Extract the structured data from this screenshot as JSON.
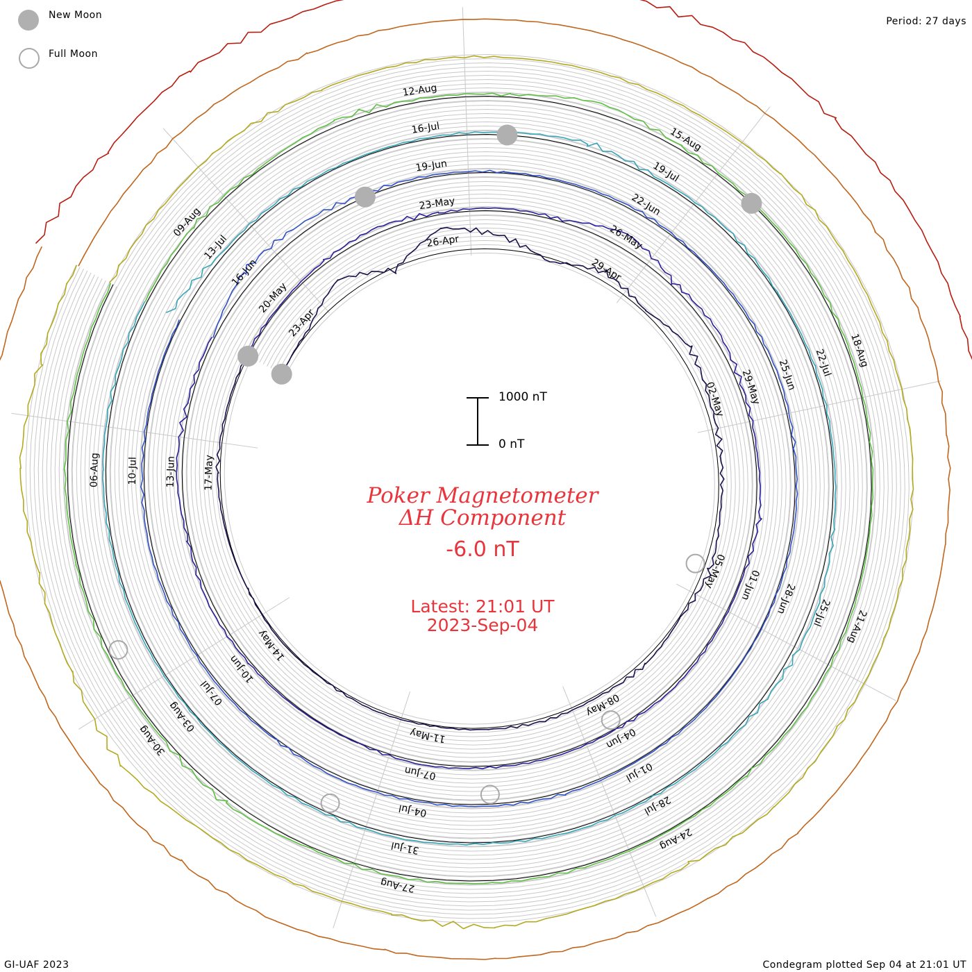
{
  "legend": {
    "new_moon_label": "New Moon",
    "full_moon_label": "Full Moon"
  },
  "period_label": "Period: 27 days",
  "credit": "GI-UAF 2023",
  "plotted": "Condegram plotted Sep 04 at 21:01 UT",
  "title_line1": "Poker Magnetometer",
  "title_line2": "ΔH Component",
  "current_value": "-6.0 nT",
  "latest_line1": "Latest: 21:01 UT",
  "latest_line2": "2023-Sep-04",
  "scale": {
    "top_label": "1000 nT",
    "bottom_label": "0 nT",
    "top_value": 1000,
    "bottom_value": 0
  },
  "colors": {
    "new_moon": "#b0b0b0",
    "full_moon": "#a8a8a8",
    "title": "#e8343a",
    "grid": "#c8c8c8",
    "ring": "#000000"
  },
  "chart_data": {
    "type": "line",
    "layout": "spiral condegram",
    "period_days": 27,
    "start_date": "2023-04-22",
    "end_date": "2023-09-04",
    "date_labels": [
      "23-Apr",
      "26-Apr",
      "29-Apr",
      "02-May",
      "05-May",
      "08-May",
      "11-May",
      "14-May",
      "17-May",
      "20-May",
      "23-May",
      "26-May",
      "29-May",
      "01-Jun",
      "04-Jun",
      "07-Jun",
      "10-Jun",
      "13-Jun",
      "16-Jun",
      "19-Jun",
      "22-Jun",
      "25-Jun",
      "28-Jun",
      "01-Jul",
      "04-Jul",
      "07-Jul",
      "10-Jul",
      "13-Jul",
      "16-Jul",
      "19-Jul",
      "22-Jul",
      "25-Jul",
      "28-Jul",
      "31-Jul",
      "03-Aug",
      "06-Aug",
      "09-Aug",
      "12-Aug",
      "15-Aug",
      "18-Aug",
      "21-Aug",
      "24-Aug",
      "27-Aug",
      "30-Aug"
    ],
    "new_moon_dates": [
      "2023-04-20",
      "2023-05-19",
      "2023-06-18",
      "2023-07-17",
      "2023-08-16"
    ],
    "full_moon_dates": [
      "2023-05-05",
      "2023-06-04",
      "2023-07-03",
      "2023-08-01",
      "2023-08-31"
    ],
    "series_colors": [
      "#1a0f4a",
      "#2a1f9a",
      "#3150c8",
      "#35a6b8",
      "#5fbf45",
      "#b4a91e",
      "#c0651c",
      "#b81c10"
    ],
    "delta_h_nT": [
      [
        -20,
        40,
        380,
        -60,
        520,
        300,
        -80,
        180,
        40,
        260,
        120,
        80,
        60,
        140,
        20,
        90,
        40,
        60,
        30,
        20,
        50,
        10,
        30,
        0,
        20,
        60,
        30
      ],
      [
        40,
        20,
        60,
        120,
        30,
        60,
        40,
        320,
        80,
        140,
        60,
        40,
        90,
        20,
        30,
        60,
        20,
        40,
        30,
        60,
        10,
        20,
        40,
        80,
        30,
        120,
        60
      ],
      [
        30,
        260,
        180,
        60,
        40,
        20,
        30,
        50,
        20,
        40,
        60,
        30,
        40,
        20,
        10,
        30,
        20,
        50,
        40,
        30,
        60,
        20,
        40,
        30,
        60,
        40,
        20
      ],
      [
        280,
        60,
        40,
        20,
        30,
        50,
        140,
        40,
        60,
        20,
        40,
        30,
        60,
        120,
        80,
        40,
        30,
        50,
        20,
        60,
        40,
        30,
        20,
        40,
        30,
        60,
        50
      ],
      [
        40,
        80,
        30,
        120,
        60,
        40,
        220,
        60,
        30,
        50,
        40,
        30,
        20,
        40,
        60,
        30,
        20,
        40,
        50,
        60,
        30,
        120,
        40,
        60,
        30,
        50,
        40
      ],
      [
        60,
        40,
        80,
        30,
        40,
        20,
        30,
        20,
        60,
        40,
        30,
        80,
        40,
        60,
        40,
        120,
        30,
        60,
        180,
        40,
        30,
        60,
        260,
        80,
        40,
        200,
        60
      ],
      [
        20,
        40,
        60,
        30,
        20,
        10,
        30,
        20,
        40,
        60,
        80,
        40,
        20,
        30,
        20,
        40,
        60,
        30,
        40,
        20,
        120,
        60,
        40,
        30,
        60,
        140,
        80
      ],
      [
        220,
        60,
        160,
        80,
        40,
        300,
        120,
        180,
        60,
        80,
        40,
        30
      ]
    ]
  }
}
